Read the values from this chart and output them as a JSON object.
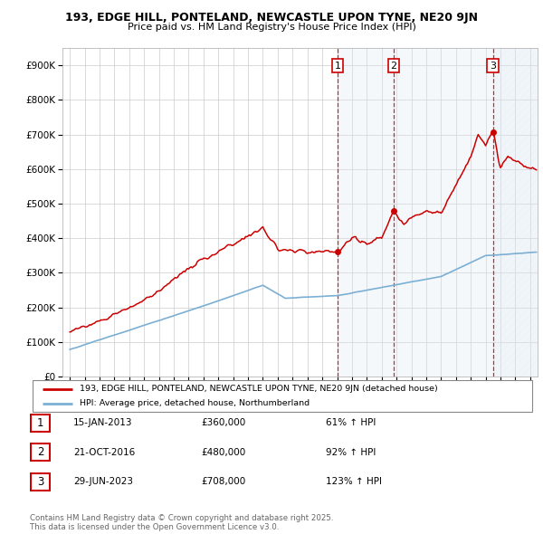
{
  "title1": "193, EDGE HILL, PONTELAND, NEWCASTLE UPON TYNE, NE20 9JN",
  "title2": "Price paid vs. HM Land Registry's House Price Index (HPI)",
  "background_color": "#ffffff",
  "plot_bg_color": "#ffffff",
  "grid_color": "#cccccc",
  "sale_dates_num": [
    2013.04,
    2016.81,
    2023.49
  ],
  "sale_prices": [
    360000,
    480000,
    708000
  ],
  "sale_labels": [
    "1",
    "2",
    "3"
  ],
  "legend_red": "193, EDGE HILL, PONTELAND, NEWCASTLE UPON TYNE, NE20 9JN (detached house)",
  "legend_blue": "HPI: Average price, detached house, Northumberland",
  "table_data": [
    {
      "num": "1",
      "date": "15-JAN-2013",
      "price": "£360,000",
      "hpi": "61% ↑ HPI"
    },
    {
      "num": "2",
      "date": "21-OCT-2016",
      "price": "£480,000",
      "hpi": "92% ↑ HPI"
    },
    {
      "num": "3",
      "date": "29-JUN-2023",
      "price": "£708,000",
      "hpi": "123% ↑ HPI"
    }
  ],
  "footnote": "Contains HM Land Registry data © Crown copyright and database right 2025.\nThis data is licensed under the Open Government Licence v3.0.",
  "red_color": "#cc0000",
  "blue_color": "#7bafd4",
  "shading_color": "#dde8f5",
  "dashed_color": "#cc0000",
  "ylim": [
    0,
    950000
  ],
  "xlim_start": 1994.5,
  "xlim_end": 2026.5,
  "yticks": [
    0,
    100000,
    200000,
    300000,
    400000,
    500000,
    600000,
    700000,
    800000,
    900000
  ]
}
